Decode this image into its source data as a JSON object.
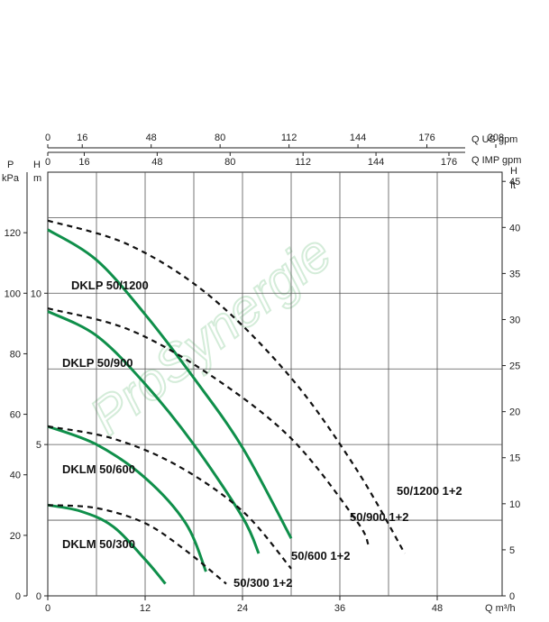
{
  "chart_data": {
    "type": "line",
    "x_axis": {
      "unit_label": "Q m³/h",
      "range": [
        0,
        56
      ],
      "ticks": [
        "0",
        "12",
        "24",
        "36",
        "48"
      ]
    },
    "y_axis_kpa": {
      "letter": "P",
      "unit": "kPa",
      "range": [
        0,
        140
      ],
      "ticks": [
        "0",
        "20",
        "40",
        "60",
        "80",
        "100",
        "120"
      ]
    },
    "y_axis_m": {
      "letter": "H",
      "unit": "m",
      "range": [
        0,
        14
      ],
      "ticks": [
        "0",
        "5",
        "10"
      ]
    },
    "y_axis_ft": {
      "letter": "H",
      "unit": "ft",
      "range": [
        0,
        46
      ],
      "ticks": [
        "0",
        "5",
        "10",
        "15",
        "20",
        "25",
        "30",
        "35",
        "40",
        "45"
      ]
    },
    "top_axis_us": {
      "unit_label": "Q US gpm",
      "ticks": [
        "0",
        "16",
        "48",
        "80",
        "112",
        "144",
        "176",
        "208"
      ]
    },
    "top_axis_imp": {
      "unit_label": "Q IMP gpm",
      "ticks": [
        "0",
        "16",
        "48",
        "80",
        "112",
        "144",
        "176"
      ]
    },
    "grid": true,
    "watermark": "ProSynergie",
    "series": [
      {
        "name": "DKLP 50/1200",
        "style": "solid",
        "color": "#0f8f4a",
        "points": [
          [
            0,
            12.1
          ],
          [
            6,
            11.1
          ],
          [
            12,
            9.3
          ],
          [
            18,
            7.2
          ],
          [
            24,
            4.9
          ],
          [
            30,
            1.9
          ]
        ]
      },
      {
        "name": "DKLP 50/900",
        "style": "solid",
        "color": "#0f8f4a",
        "points": [
          [
            0,
            9.4
          ],
          [
            6,
            8.6
          ],
          [
            12,
            7.0
          ],
          [
            18,
            5.0
          ],
          [
            24,
            2.6
          ],
          [
            26,
            1.4
          ]
        ]
      },
      {
        "name": "DKLM 50/600",
        "style": "solid",
        "color": "#0f8f4a",
        "points": [
          [
            0,
            5.6
          ],
          [
            6,
            5.0
          ],
          [
            12,
            3.9
          ],
          [
            17,
            2.4
          ],
          [
            19.5,
            0.8
          ]
        ]
      },
      {
        "name": "DKLM 50/300",
        "style": "solid",
        "color": "#0f8f4a",
        "points": [
          [
            0,
            3.0
          ],
          [
            4,
            2.8
          ],
          [
            8,
            2.3
          ],
          [
            12,
            1.2
          ],
          [
            14.5,
            0.4
          ]
        ]
      },
      {
        "name": "50/1200 1+2",
        "style": "dashed",
        "color": "#111111",
        "points": [
          [
            0,
            12.4
          ],
          [
            10,
            11.6
          ],
          [
            20,
            9.9
          ],
          [
            30,
            7.2
          ],
          [
            38,
            4.2
          ],
          [
            44,
            1.4
          ]
        ]
      },
      {
        "name": "50/900 1+2",
        "style": "dashed",
        "color": "#111111",
        "points": [
          [
            0,
            9.5
          ],
          [
            10,
            8.8
          ],
          [
            20,
            7.3
          ],
          [
            30,
            5.2
          ],
          [
            38,
            2.5
          ],
          [
            39.5,
            1.7
          ]
        ]
      },
      {
        "name": "50/600 1+2",
        "style": "dashed",
        "color": "#111111",
        "points": [
          [
            0,
            5.6
          ],
          [
            8,
            5.2
          ],
          [
            16,
            4.3
          ],
          [
            24,
            2.8
          ],
          [
            30,
            0.9
          ]
        ]
      },
      {
        "name": "50/300 1+2",
        "style": "dashed",
        "color": "#111111",
        "points": [
          [
            0,
            3.0
          ],
          [
            6,
            2.9
          ],
          [
            12,
            2.4
          ],
          [
            17,
            1.5
          ],
          [
            22,
            0.4
          ]
        ]
      }
    ]
  }
}
